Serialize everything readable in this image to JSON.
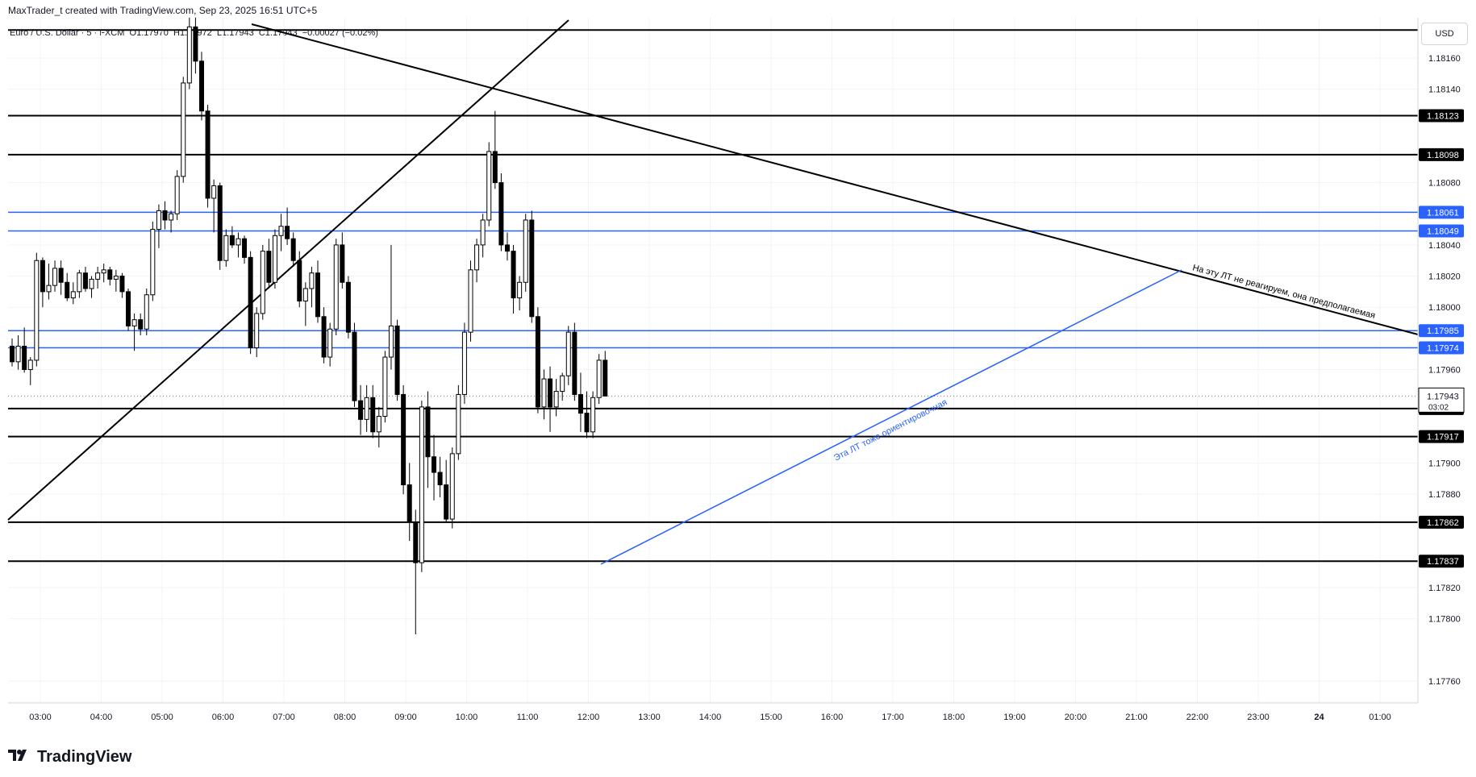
{
  "header": {
    "created_by": "MaxTrader_t created with TradingView.com, Sep 23, 2025 16:51 UTC+5"
  },
  "legend": {
    "symbol": "Euro / U.S. Dollar · 5 · FXCM",
    "open": "O1.17970",
    "high": "H1.17972",
    "low": "L1.17943",
    "close": "C1.17943",
    "change": "−0.00027 (−0.02%)"
  },
  "currency": "USD",
  "footer": {
    "logo_text": "TradingView",
    "logo_icon": "tradingview-logo-icon"
  },
  "colors": {
    "up_candle": "#ffffff",
    "down_candle": "#000000",
    "black_level": "#000000",
    "blue_level": "#2962ff",
    "grid": "#f0f3fa",
    "annotation_blue": "#2962ff"
  },
  "chart_data": {
    "type": "candlestick",
    "title": "Euro / U.S. Dollar · 5 · FXCM",
    "y_range": [
      1.1774,
      1.1818
    ],
    "y_ticks": [
      "1.18160",
      "1.18140",
      "1.18080",
      "1.18040",
      "1.18020",
      "1.18000",
      "1.17960",
      "1.17900",
      "1.17880",
      "1.17820",
      "1.17800",
      "1.17760"
    ],
    "x_ticks": [
      "03:00",
      "04:00",
      "05:00",
      "06:00",
      "07:00",
      "08:00",
      "09:00",
      "10:00",
      "11:00",
      "12:00",
      "13:00",
      "14:00",
      "15:00",
      "16:00",
      "17:00",
      "18:00",
      "19:00",
      "20:00",
      "21:00",
      "22:00",
      "23:00",
      "24",
      "01:00"
    ],
    "levels": [
      {
        "price": 1.18123,
        "label": "1.18123",
        "color": "black"
      },
      {
        "price": 1.18098,
        "label": "1.18098",
        "color": "black"
      },
      {
        "price": 1.18061,
        "label": "1.18061",
        "color": "blue"
      },
      {
        "price": 1.18049,
        "label": "1.18049",
        "color": "blue"
      },
      {
        "price": 1.17985,
        "label": "1.17985",
        "color": "blue"
      },
      {
        "price": 1.17974,
        "label": "1.17974",
        "color": "blue"
      },
      {
        "price": 1.17935,
        "label": "1.17935",
        "color": "black"
      },
      {
        "price": 1.17917,
        "label": "1.17917",
        "color": "black"
      },
      {
        "price": 1.17862,
        "label": "1.17862",
        "color": "black"
      },
      {
        "price": 1.17837,
        "label": "1.17837",
        "color": "black"
      }
    ],
    "top_level_price": 1.18178,
    "current_price": {
      "label": "1.17943",
      "countdown": "03:02",
      "price": 1.17943
    },
    "annotations": [
      {
        "text": "На эту ЛТ не реагируем, она предполагаемая"
      },
      {
        "text": "Эта ЛТ тоже ориентировочная"
      }
    ],
    "candles": [
      [
        1.17975,
        1.1798,
        1.17962,
        1.17965
      ],
      [
        1.17965,
        1.17982,
        1.1796,
        1.17975
      ],
      [
        1.17975,
        1.17987,
        1.17958,
        1.1796
      ],
      [
        1.1796,
        1.17968,
        1.1795,
        1.17966
      ],
      [
        1.17966,
        1.18035,
        1.17962,
        1.1803
      ],
      [
        1.1803,
        1.18032,
        1.18,
        1.1801
      ],
      [
        1.1801,
        1.18028,
        1.18005,
        1.18014
      ],
      [
        1.18014,
        1.1803,
        1.1801,
        1.18025
      ],
      [
        1.18025,
        1.1803,
        1.18008,
        1.18016
      ],
      [
        1.18016,
        1.18022,
        1.18004,
        1.18006
      ],
      [
        1.18006,
        1.18016,
        1.18002,
        1.1801
      ],
      [
        1.1801,
        1.18024,
        1.18006,
        1.18022
      ],
      [
        1.18022,
        1.18026,
        1.1801,
        1.18012
      ],
      [
        1.18012,
        1.1802,
        1.18006,
        1.18018
      ],
      [
        1.18018,
        1.18026,
        1.18012,
        1.18022
      ],
      [
        1.18022,
        1.18028,
        1.18016,
        1.18024
      ],
      [
        1.18024,
        1.18026,
        1.18014,
        1.18018
      ],
      [
        1.18018,
        1.18024,
        1.1801,
        1.1802
      ],
      [
        1.1802,
        1.18022,
        1.18006,
        1.1801
      ],
      [
        1.1801,
        1.18012,
        1.17985,
        1.17988
      ],
      [
        1.17988,
        1.17996,
        1.17972,
        1.17992
      ],
      [
        1.17992,
        1.17996,
        1.17982,
        1.17986
      ],
      [
        1.17986,
        1.18012,
        1.17982,
        1.18008
      ],
      [
        1.18008,
        1.18055,
        1.18004,
        1.1805
      ],
      [
        1.1805,
        1.18066,
        1.18038,
        1.18062
      ],
      [
        1.18062,
        1.18068,
        1.1805,
        1.18056
      ],
      [
        1.18056,
        1.18062,
        1.18048,
        1.1806
      ],
      [
        1.1806,
        1.18088,
        1.18056,
        1.18084
      ],
      [
        1.18084,
        1.18148,
        1.1808,
        1.18144
      ],
      [
        1.18144,
        1.18186,
        1.1814,
        1.1818
      ],
      [
        1.1818,
        1.18186,
        1.1815,
        1.18158
      ],
      [
        1.18158,
        1.18164,
        1.1812,
        1.18126
      ],
      [
        1.18126,
        1.1813,
        1.18064,
        1.1807
      ],
      [
        1.1807,
        1.18082,
        1.18048,
        1.18078
      ],
      [
        1.18078,
        1.1808,
        1.18024,
        1.1803
      ],
      [
        1.1803,
        1.1805,
        1.18026,
        1.18046
      ],
      [
        1.18046,
        1.18052,
        1.18038,
        1.1804
      ],
      [
        1.1804,
        1.18048,
        1.18032,
        1.18044
      ],
      [
        1.18044,
        1.18046,
        1.18028,
        1.18032
      ],
      [
        1.18032,
        1.18036,
        1.1797,
        1.17974
      ],
      [
        1.17974,
        1.18,
        1.17968,
        1.17996
      ],
      [
        1.17996,
        1.1804,
        1.17992,
        1.18036
      ],
      [
        1.18036,
        1.18044,
        1.18012,
        1.18016
      ],
      [
        1.18016,
        1.1805,
        1.18012,
        1.18046
      ],
      [
        1.18046,
        1.1806,
        1.18036,
        1.18052
      ],
      [
        1.18052,
        1.18064,
        1.1804,
        1.18044
      ],
      [
        1.18044,
        1.18048,
        1.18026,
        1.1803
      ],
      [
        1.1803,
        1.18036,
        1.18,
        1.18004
      ],
      [
        1.18004,
        1.18016,
        1.17988,
        1.18012
      ],
      [
        1.18012,
        1.18026,
        1.18,
        1.18022
      ],
      [
        1.18022,
        1.1803,
        1.1799,
        1.17994
      ],
      [
        1.17994,
        1.18,
        1.17964,
        1.17968
      ],
      [
        1.17968,
        1.1799,
        1.17962,
        1.17986
      ],
      [
        1.17986,
        1.18044,
        1.17982,
        1.1804
      ],
      [
        1.1804,
        1.18048,
        1.18012,
        1.18016
      ],
      [
        1.18016,
        1.1802,
        1.1798,
        1.17984
      ],
      [
        1.17984,
        1.1799,
        1.17936,
        1.1794
      ],
      [
        1.1794,
        1.1795,
        1.17918,
        1.17928
      ],
      [
        1.17928,
        1.1795,
        1.1792,
        1.17942
      ],
      [
        1.17942,
        1.1795,
        1.17916,
        1.1792
      ],
      [
        1.1792,
        1.17936,
        1.1791,
        1.1793
      ],
      [
        1.1793,
        1.17972,
        1.17926,
        1.17968
      ],
      [
        1.17968,
        1.1804,
        1.1796,
        1.17988
      ],
      [
        1.17988,
        1.17992,
        1.1794,
        1.17944
      ],
      [
        1.17944,
        1.1795,
        1.1788,
        1.17886
      ],
      [
        1.17886,
        1.179,
        1.1785,
        1.17862
      ],
      [
        1.17862,
        1.1787,
        1.1779,
        1.17836
      ],
      [
        1.17836,
        1.1794,
        1.1783,
        1.17936
      ],
      [
        1.17936,
        1.17946,
        1.17884,
        1.17904
      ],
      [
        1.17904,
        1.17918,
        1.17876,
        1.17894
      ],
      [
        1.17894,
        1.17904,
        1.17878,
        1.17886
      ],
      [
        1.17886,
        1.17902,
        1.17862,
        1.17864
      ],
      [
        1.17864,
        1.1791,
        1.17858,
        1.17906
      ],
      [
        1.17906,
        1.1795,
        1.17902,
        1.17944
      ],
      [
        1.17944,
        1.1799,
        1.17938,
        1.17984
      ],
      [
        1.17984,
        1.1803,
        1.17978,
        1.18024
      ],
      [
        1.18024,
        1.18044,
        1.18016,
        1.1804
      ],
      [
        1.1804,
        1.1806,
        1.18032,
        1.18056
      ],
      [
        1.18056,
        1.18106,
        1.18052,
        1.181
      ],
      [
        1.181,
        1.18126,
        1.18076,
        1.1808
      ],
      [
        1.1808,
        1.18086,
        1.18036,
        1.1804
      ],
      [
        1.1804,
        1.18048,
        1.1803,
        1.18036
      ],
      [
        1.18036,
        1.1804,
        1.17996,
        1.18006
      ],
      [
        1.18006,
        1.1802,
        1.17998,
        1.18016
      ],
      [
        1.18016,
        1.1806,
        1.1801,
        1.18056
      ],
      [
        1.18056,
        1.18062,
        1.1799,
        1.17994
      ],
      [
        1.17994,
        1.18,
        1.17932,
        1.17936
      ],
      [
        1.17936,
        1.1796,
        1.17928,
        1.17954
      ],
      [
        1.17954,
        1.17962,
        1.1792,
        1.17936
      ],
      [
        1.17936,
        1.17954,
        1.1793,
        1.17946
      ],
      [
        1.17946,
        1.17958,
        1.1794,
        1.17956
      ],
      [
        1.17956,
        1.17988,
        1.1795,
        1.17984
      ],
      [
        1.17984,
        1.1799,
        1.1794,
        1.17944
      ],
      [
        1.17944,
        1.17958,
        1.1792,
        1.17932
      ],
      [
        1.17932,
        1.17946,
        1.17916,
        1.1792
      ],
      [
        1.1792,
        1.17946,
        1.17916,
        1.17942
      ],
      [
        1.17942,
        1.1797,
        1.17938,
        1.17966
      ],
      [
        1.17966,
        1.17972,
        1.17943,
        1.17943
      ]
    ]
  }
}
